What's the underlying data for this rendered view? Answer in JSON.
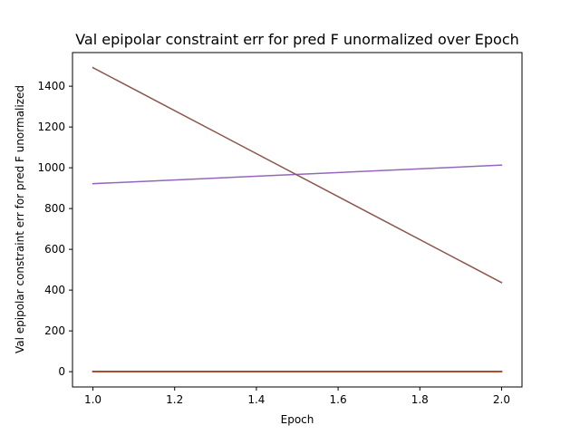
{
  "chart_data": {
    "type": "line",
    "title": "Val epipolar constraint err for pred F unormalized over Epoch",
    "xlabel": "Epoch",
    "ylabel": "Val epipolar constraint err for pred F unormalized",
    "xlim": [
      0.95,
      2.05
    ],
    "ylim": [
      -75,
      1565
    ],
    "x_ticks": [
      1.0,
      1.2,
      1.4,
      1.6,
      1.8,
      2.0
    ],
    "x_tick_labels": [
      "1.0",
      "1.2",
      "1.4",
      "1.6",
      "1.8",
      "2.0"
    ],
    "y_ticks": [
      0,
      200,
      400,
      600,
      800,
      1000,
      1200,
      1400
    ],
    "y_tick_labels": [
      "0",
      "200",
      "400",
      "600",
      "800",
      "1000",
      "1200",
      "1400"
    ],
    "grid": false,
    "legend": "none",
    "series": [
      {
        "color": "#1f77b4",
        "x": [
          1,
          2
        ],
        "y": [
          0.5,
          0.5
        ]
      },
      {
        "color": "#ff7f0e",
        "x": [
          1,
          2
        ],
        "y": [
          0.8,
          0.8
        ]
      },
      {
        "color": "#2ca02c",
        "x": [
          1,
          2
        ],
        "y": [
          0.6,
          0.6
        ]
      },
      {
        "color": "#d62728",
        "x": [
          1,
          2
        ],
        "y": [
          1.0,
          1.0
        ]
      },
      {
        "color": "#9467bd",
        "x": [
          1,
          2
        ],
        "y": [
          922,
          1013
        ]
      },
      {
        "color": "#8c564b",
        "x": [
          1,
          2
        ],
        "y": [
          1491,
          437
        ]
      }
    ]
  }
}
